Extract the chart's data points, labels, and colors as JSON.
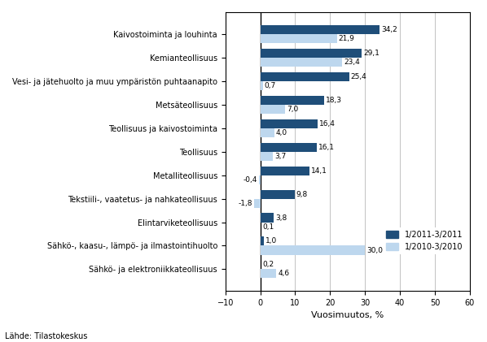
{
  "categories": [
    "Kaivostoiminta ja louhinta",
    "Kemianteollisuus",
    "Vesi- ja jätehuolto ja muu ympäristön puhtaanapito",
    "Metsäteollisuus",
    "Teollisuus ja kaivostoiminta",
    "Teollisuus",
    "Metalliteollisuus",
    "Tekstiili-, vaatetus- ja nahkateollisuus",
    "Elintarviketeollisuus",
    "Sähkö-, kaasu-, lämpö- ja ilmastointihuolto",
    "Sähkö- ja elektroniikkateollisuus"
  ],
  "series_2011": [
    34.2,
    29.1,
    25.4,
    18.3,
    16.4,
    16.1,
    14.1,
    9.8,
    3.8,
    1.0,
    0.2
  ],
  "series_2010": [
    21.9,
    23.4,
    0.7,
    7.0,
    4.0,
    3.7,
    -0.4,
    -1.8,
    0.1,
    30.0,
    4.6
  ],
  "labels_2011": [
    "34,2",
    "29,1",
    "25,4",
    "18,3",
    "16,4",
    "16,1",
    "14,1",
    "9,8",
    "3,8",
    "1,0",
    "0,2"
  ],
  "labels_2010": [
    "21,9",
    "23,4",
    "0,7",
    "7,0",
    "4,0",
    "3,7",
    "-0,4",
    "-1,8",
    "0,1",
    "30,0",
    "4,6"
  ],
  "color_2011": "#1F4E79",
  "color_2010": "#BDD7EE",
  "xlabel": "Vuosimuutos, %",
  "legend_2011": "1/2011-3/2011",
  "legend_2010": "1/2010-3/2010",
  "xlim": [
    -10,
    60
  ],
  "xticks": [
    -10,
    0,
    10,
    20,
    30,
    40,
    50,
    60
  ],
  "footnote": "Lähde: Tilastokeskus"
}
